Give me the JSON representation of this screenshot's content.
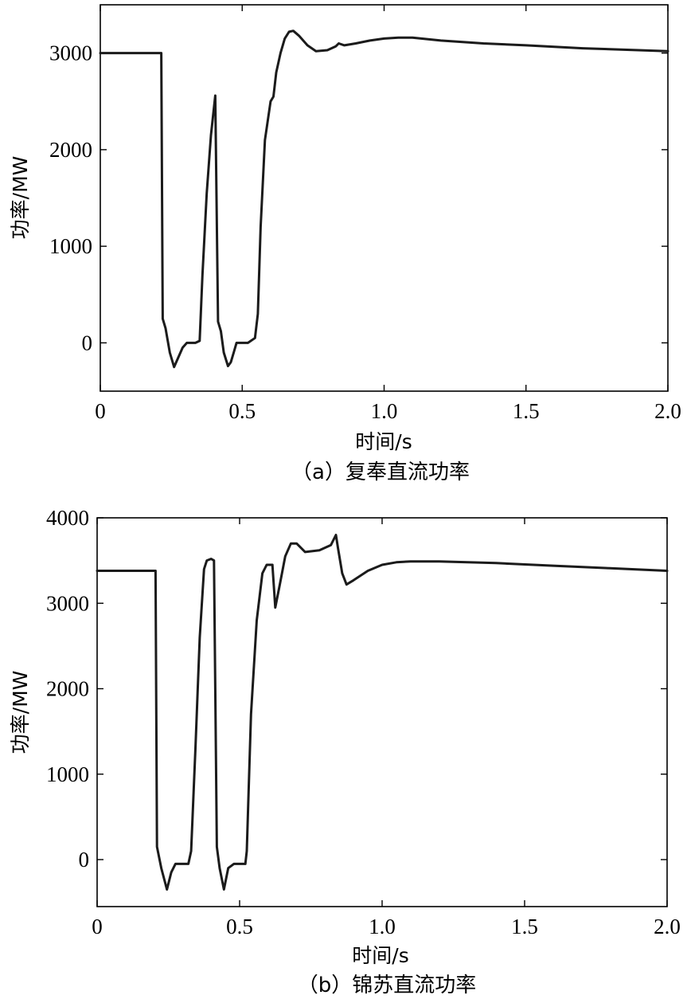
{
  "chart_data": [
    {
      "type": "line",
      "caption": "（a）复奉直流功率",
      "xlabel": "时间/s",
      "ylabel": "功率/MW",
      "xlim": [
        0,
        2.0
      ],
      "ylim": [
        -500,
        3500
      ],
      "xticks": [
        0,
        0.5,
        1.0,
        1.5,
        2.0
      ],
      "xtick_labels": [
        "0",
        "0.5",
        "1.0",
        "1.5",
        "2.0"
      ],
      "yticks": [
        0,
        1000,
        2000,
        3000
      ],
      "ytick_labels": [
        "0",
        "1000",
        "2000",
        "3000"
      ],
      "grid": false,
      "series": [
        {
          "x": [
            0,
            0.215,
            0.22,
            0.23,
            0.245,
            0.26,
            0.275,
            0.29,
            0.305,
            0.32,
            0.335,
            0.35,
            0.36,
            0.375,
            0.39,
            0.405,
            0.415,
            0.425,
            0.435,
            0.45,
            0.46,
            0.47,
            0.48,
            0.5,
            0.52,
            0.545,
            0.555,
            0.565,
            0.58,
            0.6,
            0.61,
            0.62,
            0.635,
            0.65,
            0.665,
            0.68,
            0.7,
            0.73,
            0.76,
            0.8,
            0.83,
            0.84,
            0.86,
            0.9,
            0.95,
            1.0,
            1.05,
            1.1,
            1.2,
            1.35,
            1.5,
            1.7,
            2.0
          ],
          "y": [
            3000,
            3000,
            250,
            150,
            -100,
            -250,
            -150,
            -50,
            0,
            0,
            0,
            20,
            700,
            1550,
            2150,
            2560,
            220,
            120,
            -100,
            -240,
            -200,
            -100,
            0,
            0,
            0,
            50,
            300,
            1200,
            2100,
            2500,
            2550,
            2800,
            3000,
            3150,
            3220,
            3230,
            3180,
            3080,
            3020,
            3030,
            3070,
            3100,
            3080,
            3100,
            3130,
            3150,
            3160,
            3160,
            3130,
            3100,
            3080,
            3050,
            3020
          ]
        }
      ]
    },
    {
      "type": "line",
      "caption": "（b）锦苏直流功率",
      "xlabel": "时间/s",
      "ylabel": "功率/MW",
      "xlim": [
        0,
        2.0
      ],
      "ylim": [
        -550,
        4000
      ],
      "xticks": [
        0,
        0.5,
        1.0,
        1.5,
        2.0
      ],
      "xtick_labels": [
        "0",
        "0.5",
        "1.0",
        "1.5",
        "2.0"
      ],
      "yticks": [
        0,
        1000,
        2000,
        3000,
        4000
      ],
      "ytick_labels": [
        "0",
        "1000",
        "2000",
        "3000",
        "4000"
      ],
      "grid": false,
      "series": [
        {
          "x": [
            0,
            0.205,
            0.21,
            0.225,
            0.245,
            0.26,
            0.275,
            0.3,
            0.32,
            0.33,
            0.345,
            0.36,
            0.375,
            0.385,
            0.4,
            0.41,
            0.42,
            0.43,
            0.445,
            0.46,
            0.48,
            0.5,
            0.52,
            0.525,
            0.54,
            0.56,
            0.58,
            0.595,
            0.615,
            0.625,
            0.64,
            0.66,
            0.68,
            0.7,
            0.73,
            0.78,
            0.82,
            0.838,
            0.845,
            0.86,
            0.875,
            0.9,
            0.95,
            1.0,
            1.05,
            1.1,
            1.2,
            1.4,
            1.6,
            1.8,
            2.0
          ],
          "y": [
            3380,
            3380,
            150,
            -100,
            -350,
            -150,
            -50,
            -50,
            -50,
            100,
            1300,
            2600,
            3400,
            3500,
            3520,
            3500,
            150,
            -100,
            -350,
            -100,
            -50,
            -50,
            -50,
            100,
            1700,
            2800,
            3350,
            3450,
            3450,
            2950,
            3200,
            3550,
            3700,
            3700,
            3600,
            3620,
            3680,
            3800,
            3650,
            3350,
            3220,
            3270,
            3380,
            3450,
            3480,
            3490,
            3490,
            3470,
            3440,
            3410,
            3380
          ]
        }
      ]
    }
  ]
}
